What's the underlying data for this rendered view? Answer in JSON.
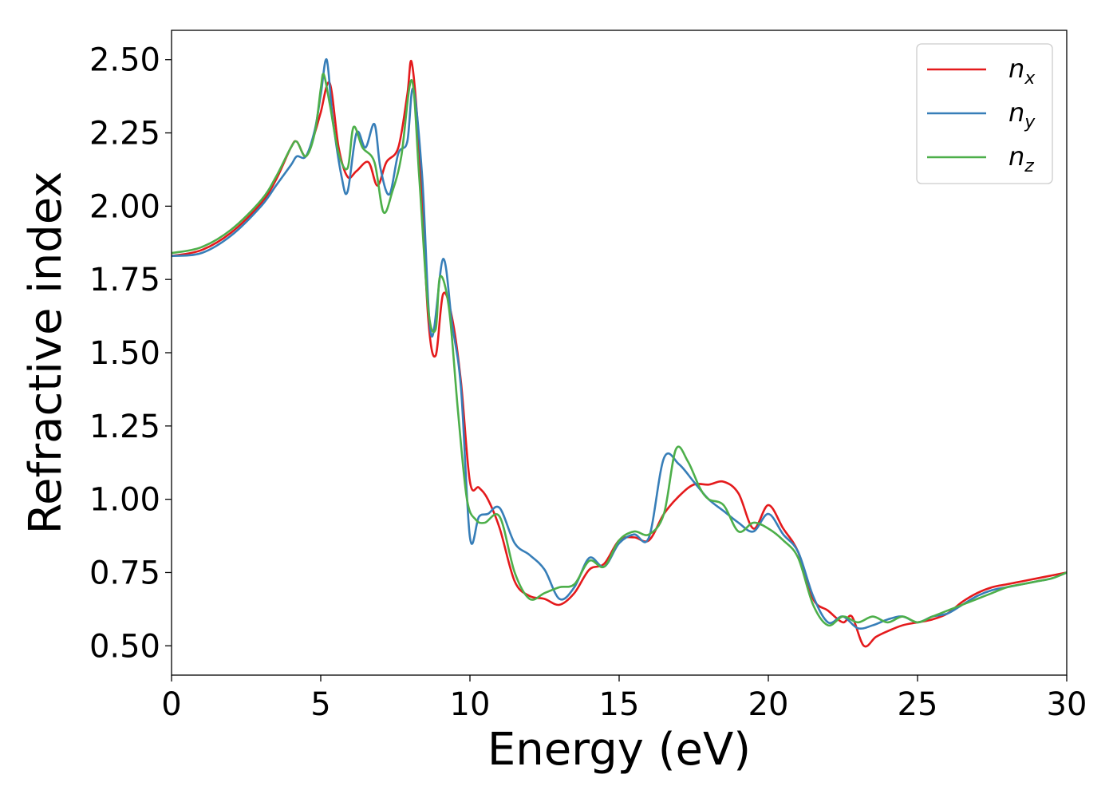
{
  "chart_data": {
    "type": "line",
    "xlabel": "Energy (eV)",
    "ylabel": "Refractive index",
    "xlim": [
      0,
      30
    ],
    "ylim": [
      0.4,
      2.6
    ],
    "x_ticks": [
      0,
      5,
      10,
      15,
      20,
      25,
      30
    ],
    "x_tick_labels": [
      "0",
      "5",
      "10",
      "15",
      "20",
      "25",
      "30"
    ],
    "y_ticks": [
      0.5,
      0.75,
      1.0,
      1.25,
      1.5,
      1.75,
      2.0,
      2.25,
      2.5
    ],
    "y_tick_labels": [
      "0.50",
      "0.75",
      "1.00",
      "1.25",
      "1.50",
      "1.75",
      "2.00",
      "2.25",
      "2.50"
    ],
    "grid": false,
    "legend_position": "top-right",
    "series": [
      {
        "name": "n_x",
        "label_base": "n",
        "label_sub": "x",
        "color": "#e41a1c",
        "x": [
          0,
          1,
          2,
          3,
          3.5,
          4,
          4.2,
          4.5,
          4.8,
          5.0,
          5.3,
          5.6,
          5.9,
          6.2,
          6.6,
          6.9,
          7.2,
          7.6,
          7.9,
          8.05,
          8.3,
          8.6,
          8.85,
          9.1,
          9.4,
          9.7,
          10.0,
          10.3,
          10.6,
          11.0,
          11.5,
          12.0,
          12.5,
          13.0,
          13.5,
          14.0,
          14.5,
          15.0,
          15.5,
          16.0,
          16.5,
          17.0,
          17.5,
          18.0,
          18.5,
          19.0,
          19.5,
          20.0,
          20.5,
          21.0,
          21.5,
          22.0,
          22.5,
          22.8,
          23.2,
          23.6,
          24.0,
          24.5,
          25.0,
          25.5,
          26.0,
          26.5,
          27.0,
          27.5,
          28.0,
          28.5,
          29.0,
          29.5,
          30.0
        ],
        "y": [
          1.83,
          1.85,
          1.91,
          2.01,
          2.09,
          2.2,
          2.22,
          2.17,
          2.25,
          2.32,
          2.42,
          2.2,
          2.1,
          2.12,
          2.15,
          2.07,
          2.15,
          2.2,
          2.38,
          2.49,
          2.2,
          1.62,
          1.49,
          1.7,
          1.62,
          1.4,
          1.06,
          1.04,
          1.0,
          0.9,
          0.72,
          0.67,
          0.66,
          0.64,
          0.68,
          0.76,
          0.78,
          0.86,
          0.87,
          0.86,
          0.95,
          1.01,
          1.05,
          1.05,
          1.06,
          1.02,
          0.9,
          0.98,
          0.9,
          0.82,
          0.66,
          0.62,
          0.58,
          0.6,
          0.5,
          0.53,
          0.55,
          0.57,
          0.58,
          0.59,
          0.61,
          0.65,
          0.68,
          0.7,
          0.71,
          0.72,
          0.73,
          0.74,
          0.75
        ]
      },
      {
        "name": "n_y",
        "label_base": "n",
        "label_sub": "y",
        "color": "#377eb8",
        "x": [
          0,
          1,
          2,
          3,
          3.5,
          4,
          4.2,
          4.5,
          4.8,
          5.0,
          5.2,
          5.4,
          5.7,
          5.9,
          6.2,
          6.5,
          6.8,
          7.0,
          7.3,
          7.6,
          7.9,
          8.1,
          8.4,
          8.7,
          9.1,
          9.4,
          9.7,
          10.0,
          10.3,
          10.6,
          11.0,
          11.5,
          12.0,
          12.5,
          13.0,
          13.5,
          14.0,
          14.5,
          15.0,
          15.5,
          16.0,
          16.5,
          17.0,
          17.5,
          18.0,
          18.5,
          19.0,
          19.5,
          20.0,
          20.5,
          21.0,
          21.5,
          22.0,
          22.5,
          23.0,
          23.5,
          24.0,
          24.5,
          25.0,
          25.5,
          26.0,
          26.5,
          27.0,
          27.5,
          28.0,
          28.5,
          29.0,
          29.5,
          30.0
        ],
        "y": [
          1.83,
          1.84,
          1.9,
          2.0,
          2.07,
          2.14,
          2.17,
          2.17,
          2.26,
          2.38,
          2.5,
          2.3,
          2.1,
          2.05,
          2.25,
          2.2,
          2.28,
          2.13,
          2.04,
          2.18,
          2.22,
          2.4,
          2.1,
          1.56,
          1.82,
          1.6,
          1.38,
          0.87,
          0.94,
          0.95,
          0.97,
          0.85,
          0.81,
          0.76,
          0.66,
          0.7,
          0.8,
          0.77,
          0.85,
          0.88,
          0.87,
          1.14,
          1.12,
          1.06,
          1.0,
          0.96,
          0.92,
          0.89,
          0.95,
          0.88,
          0.82,
          0.67,
          0.58,
          0.6,
          0.56,
          0.57,
          0.59,
          0.6,
          0.58,
          0.6,
          0.61,
          0.64,
          0.67,
          0.69,
          0.7,
          0.71,
          0.72,
          0.73,
          0.75
        ]
      },
      {
        "name": "n_z",
        "label_base": "n",
        "label_sub": "z",
        "color": "#4daf4a",
        "x": [
          0,
          1,
          2,
          3,
          3.5,
          4,
          4.2,
          4.5,
          4.8,
          5.0,
          5.1,
          5.3,
          5.6,
          5.9,
          6.1,
          6.4,
          6.8,
          7.1,
          7.4,
          7.7,
          8.05,
          8.3,
          8.6,
          8.85,
          9.0,
          9.3,
          9.6,
          9.9,
          10.2,
          10.5,
          11.0,
          11.5,
          12.0,
          12.5,
          13.0,
          13.5,
          14.0,
          14.5,
          15.0,
          15.5,
          16.0,
          16.5,
          16.9,
          17.3,
          17.7,
          18.0,
          18.5,
          19.0,
          19.5,
          20.0,
          20.5,
          21.0,
          21.5,
          22.0,
          22.5,
          23.0,
          23.5,
          24.0,
          24.5,
          25.0,
          25.5,
          26.0,
          26.5,
          27.0,
          27.5,
          28.0,
          28.5,
          29.0,
          29.5,
          30.0
        ],
        "y": [
          1.84,
          1.86,
          1.92,
          2.02,
          2.1,
          2.2,
          2.22,
          2.17,
          2.25,
          2.4,
          2.45,
          2.35,
          2.18,
          2.13,
          2.27,
          2.2,
          2.15,
          1.98,
          2.05,
          2.17,
          2.43,
          2.1,
          1.65,
          1.58,
          1.76,
          1.65,
          1.3,
          1.0,
          0.93,
          0.92,
          0.94,
          0.75,
          0.66,
          0.68,
          0.7,
          0.71,
          0.79,
          0.77,
          0.86,
          0.89,
          0.88,
          0.95,
          1.17,
          1.13,
          1.04,
          1.0,
          0.98,
          0.89,
          0.92,
          0.9,
          0.86,
          0.8,
          0.64,
          0.57,
          0.6,
          0.58,
          0.6,
          0.58,
          0.6,
          0.58,
          0.6,
          0.62,
          0.64,
          0.66,
          0.68,
          0.7,
          0.71,
          0.72,
          0.73,
          0.75
        ]
      }
    ]
  }
}
